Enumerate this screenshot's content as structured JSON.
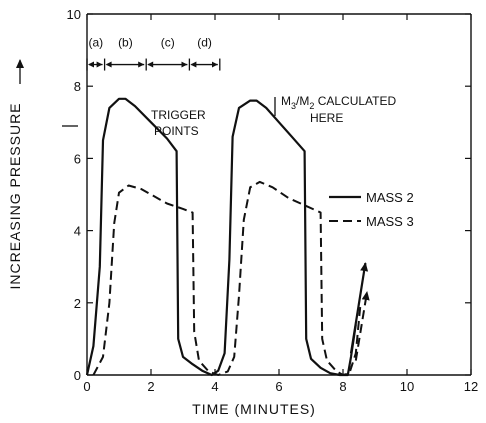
{
  "chart_data": {
    "type": "line",
    "xlabel": "TIME (MINUTES)",
    "ylabel": "INCREASING PRESSURE",
    "xlim": [
      0,
      12
    ],
    "ylim": [
      0,
      10
    ],
    "xticks": [
      0,
      2,
      4,
      6,
      8,
      10,
      12
    ],
    "yticks": [
      0,
      2,
      4,
      6,
      8,
      10
    ],
    "grid": false,
    "legend_position": "right",
    "series": [
      {
        "name": "MASS 2",
        "style": "solid",
        "points": [
          [
            0.0,
            0.0
          ],
          [
            0.2,
            0.8
          ],
          [
            0.4,
            3.0
          ],
          [
            0.5,
            6.5
          ],
          [
            0.7,
            7.4
          ],
          [
            1.0,
            7.65
          ],
          [
            1.2,
            7.65
          ],
          [
            1.5,
            7.45
          ],
          [
            2.0,
            7.0
          ],
          [
            2.5,
            6.55
          ],
          [
            2.8,
            6.2
          ],
          [
            2.85,
            1.0
          ],
          [
            3.0,
            0.5
          ],
          [
            3.3,
            0.3
          ],
          [
            3.6,
            0.12
          ],
          [
            3.9,
            0.0
          ],
          [
            4.1,
            0.12
          ],
          [
            4.3,
            0.6
          ],
          [
            4.45,
            3.2
          ],
          [
            4.55,
            6.6
          ],
          [
            4.75,
            7.4
          ],
          [
            5.1,
            7.6
          ],
          [
            5.3,
            7.6
          ],
          [
            5.6,
            7.4
          ],
          [
            6.0,
            7.0
          ],
          [
            6.4,
            6.6
          ],
          [
            6.8,
            6.2
          ],
          [
            6.85,
            1.0
          ],
          [
            7.0,
            0.45
          ],
          [
            7.3,
            0.2
          ],
          [
            7.6,
            0.05
          ],
          [
            7.9,
            0.0
          ],
          [
            8.0,
            0.0
          ],
          [
            8.15,
            0.0
          ],
          [
            8.25,
            0.5
          ],
          [
            8.4,
            1.4
          ]
        ]
      },
      {
        "name": "MASS 3",
        "style": "dashed",
        "points": [
          [
            0.2,
            0.0
          ],
          [
            0.5,
            0.5
          ],
          [
            0.7,
            2.0
          ],
          [
            0.85,
            4.2
          ],
          [
            1.0,
            5.05
          ],
          [
            1.3,
            5.25
          ],
          [
            1.7,
            5.15
          ],
          [
            2.0,
            5.0
          ],
          [
            2.5,
            4.75
          ],
          [
            3.0,
            4.6
          ],
          [
            3.3,
            4.5
          ],
          [
            3.35,
            1.2
          ],
          [
            3.5,
            0.4
          ],
          [
            3.8,
            0.1
          ],
          [
            4.1,
            0.0
          ],
          [
            4.4,
            0.1
          ],
          [
            4.6,
            0.5
          ],
          [
            4.75,
            2.2
          ],
          [
            4.9,
            4.3
          ],
          [
            5.1,
            5.2
          ],
          [
            5.4,
            5.35
          ],
          [
            5.8,
            5.2
          ],
          [
            6.3,
            4.9
          ],
          [
            6.8,
            4.7
          ],
          [
            7.3,
            4.5
          ],
          [
            7.35,
            1.0
          ],
          [
            7.5,
            0.4
          ],
          [
            7.8,
            0.1
          ],
          [
            8.0,
            0.0
          ],
          [
            8.2,
            0.05
          ],
          [
            8.4,
            0.6
          ],
          [
            8.55,
            2.0
          ]
        ]
      }
    ],
    "arrows": [
      {
        "from": [
          8.25,
          0.6
        ],
        "to": [
          8.7,
          3.1
        ],
        "style": "solid"
      },
      {
        "from": [
          8.4,
          0.4
        ],
        "to": [
          8.75,
          2.3
        ],
        "style": "dashed"
      }
    ],
    "phases": {
      "labels": [
        "(a)",
        "(b)",
        "(c)",
        "(d)"
      ],
      "boundaries": [
        0,
        0.55,
        1.85,
        3.2,
        4.15
      ]
    },
    "annotations": {
      "trigger_line1": "TRIGGER",
      "trigger_line2": "POINTS",
      "calc_prefix": "M",
      "calc_sub1": "3",
      "calc_slash": "/M",
      "calc_sub2": "2",
      "calc_suffix": " CALCULATED",
      "calc_line2": "HERE"
    },
    "legend": [
      {
        "label": "MASS 2",
        "style": "solid"
      },
      {
        "label": "MASS 3",
        "style": "dashed"
      }
    ]
  }
}
